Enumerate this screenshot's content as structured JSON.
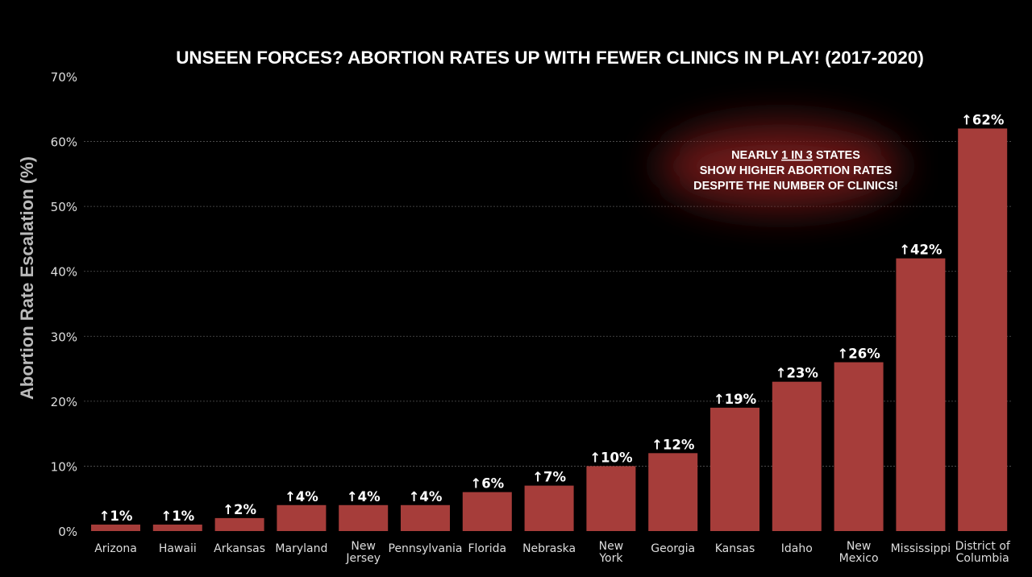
{
  "chart_data": {
    "type": "bar",
    "title": "UNSEEN FORCES? ABORTION RATES UP WITH FEWER CLINICS IN PLAY! (2017-2020)",
    "ylabel": "Abortion Rate Escalation (%)",
    "xlabel": "",
    "ylim": [
      0,
      70
    ],
    "yticks": [
      "0%",
      "10%",
      "20%",
      "30%",
      "40%",
      "50%",
      "60%",
      "70%"
    ],
    "grid": true,
    "categories": [
      [
        "Arizona"
      ],
      [
        "Hawaii"
      ],
      [
        "Arkansas"
      ],
      [
        "Maryland"
      ],
      [
        "New",
        "Jersey"
      ],
      [
        "Pennsylvania"
      ],
      [
        "Florida"
      ],
      [
        "Nebraska"
      ],
      [
        "New",
        "York"
      ],
      [
        "Georgia"
      ],
      [
        "Kansas"
      ],
      [
        "Idaho"
      ],
      [
        "New",
        "Mexico"
      ],
      [
        "Mississippi"
      ],
      [
        "District of",
        "Columbia"
      ]
    ],
    "values": [
      1,
      1,
      2,
      4,
      4,
      4,
      6,
      7,
      10,
      12,
      19,
      23,
      26,
      42,
      62
    ],
    "data_labels": [
      "↑1%",
      "↑1%",
      "↑2%",
      "↑4%",
      "↑4%",
      "↑4%",
      "↑6%",
      "↑7%",
      "↑10%",
      "↑12%",
      "↑19%",
      "↑23%",
      "↑26%",
      "↑42%",
      "↑62%"
    ],
    "annotation": {
      "line1_pre": "NEARLY ",
      "line1_underlined": "1 IN 3",
      "line1_post": " STATES",
      "line2": "SHOW HIGHER ABORTION RATES",
      "line3": "DESPITE THE NUMBER OF CLINICS!"
    },
    "colors": {
      "bar": "#a63d3a",
      "background": "#000000",
      "text": "#ffffff",
      "axis_text": "#dddddd",
      "ylabel": "#bbbbbb",
      "grid": "#555555",
      "annotation_glow": "#7a1a1a"
    }
  }
}
